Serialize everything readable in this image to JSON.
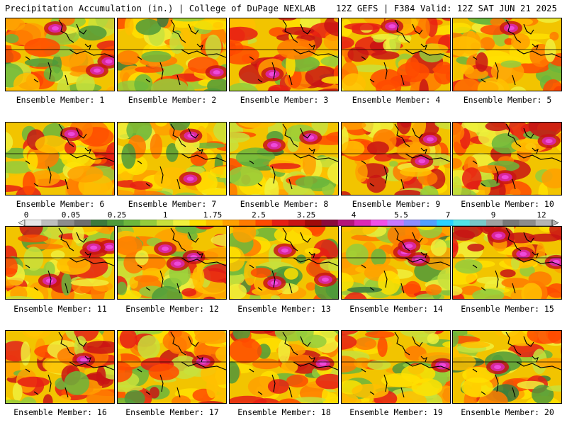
{
  "header": {
    "title": "Precipitation Accumulation (in.) | College of DuPage NEXLAB",
    "run_info": "12Z GEFS | F384 Valid: 12Z SAT JUN 21 2025"
  },
  "members": [
    "Ensemble Member: 1",
    "Ensemble Member: 2",
    "Ensemble Member: 3",
    "Ensemble Member: 4",
    "Ensemble Member: 5",
    "Ensemble Member: 6",
    "Ensemble Member: 7",
    "Ensemble Member: 8",
    "Ensemble Member: 9",
    "Ensemble Member: 10",
    "Ensemble Member: 11",
    "Ensemble Member: 12",
    "Ensemble Member: 13",
    "Ensemble Member: 14",
    "Ensemble Member: 15",
    "Ensemble Member: 16",
    "Ensemble Member: 17",
    "Ensemble Member: 18",
    "Ensemble Member: 19",
    "Ensemble Member: 20"
  ],
  "legend": {
    "labels": [
      "0",
      "0.05",
      "0.25",
      "1",
      "1.75",
      "2.5",
      "3.25",
      "4",
      "5.5",
      "7",
      "9",
      "12"
    ],
    "colors": [
      "#e6e6e6",
      "#bebebe",
      "#8c8c8c",
      "#6e6e6e",
      "#3c7a3c",
      "#4f9a3a",
      "#6bb63c",
      "#94cc3c",
      "#c8e03c",
      "#f0f03c",
      "#ffe000",
      "#ffc000",
      "#ffa000",
      "#ff7a00",
      "#ff4a00",
      "#e61e14",
      "#c81414",
      "#a00a0a",
      "#8c0a3c",
      "#b4147a",
      "#dc28b4",
      "#f050e6",
      "#c878ff",
      "#8c8cff",
      "#50a0ff",
      "#28d2ff",
      "#50e6e6",
      "#78c8c8",
      "#a0a0a0",
      "#787878",
      "#8c8c8c",
      "#b4b4b4"
    ]
  }
}
